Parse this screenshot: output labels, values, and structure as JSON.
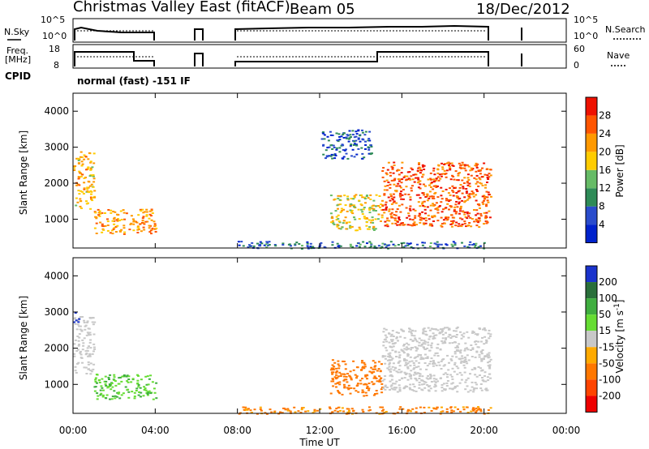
{
  "header": {
    "station": "Christmas Valley East (fitACF)",
    "beam": "Beam 05",
    "date": "18/Dec/2012"
  },
  "time_axis": {
    "label": "Time UT",
    "ticks": [
      "00:00",
      "04:00",
      "08:00",
      "12:00",
      "16:00",
      "20:00",
      "00:00"
    ]
  },
  "strip_panels": {
    "nsky": {
      "left_label": "N.Sky",
      "right_label": "N.Search",
      "ticks": [
        "10^5",
        "10^0"
      ]
    },
    "freq": {
      "left_label_1": "Freq.",
      "left_label_2": "[MHz]",
      "left_ticks": [
        "18",
        "8"
      ],
      "right_label": "Nave",
      "right_ticks": [
        "60",
        "0"
      ]
    },
    "cpid": {
      "label": "CPID",
      "mode": "normal (fast) -151 IF"
    }
  },
  "colors": {
    "power": [
      "#0022cc",
      "#2a4ccc",
      "#2e8b57",
      "#66bb66",
      "#ffcc00",
      "#ff9900",
      "#ff5500",
      "#ee1100"
    ],
    "velocity": [
      "#1a33cc",
      "#2a6f3a",
      "#3fae3f",
      "#66dd33",
      "#c8c8c8",
      "#ffaa00",
      "#ff7700",
      "#ff4400",
      "#ee0000"
    ]
  },
  "chart_data": [
    {
      "type": "heatmap",
      "quantity": "power",
      "ylabel": "Slant Range [km]",
      "xlabel": "Time UT",
      "x_range_hours": [
        0,
        24
      ],
      "ylim": [
        200,
        4500
      ],
      "yticks": [
        1000,
        2000,
        3000,
        4000
      ],
      "colorbar": {
        "label": "Power [dB]",
        "ticks": [
          4,
          8,
          12,
          16,
          20,
          24,
          28
        ],
        "range": [
          0,
          32
        ]
      },
      "gaps_hours": [
        [
          4.0,
          6.0
        ],
        [
          6.4,
          8.0
        ],
        [
          20.3,
          24.0
        ]
      ],
      "regions": [
        {
          "t": [
            0.0,
            1.0
          ],
          "r": [
            1300,
            2900
          ],
          "dB": 20
        },
        {
          "t": [
            1.0,
            4.0
          ],
          "r": [
            600,
            1300
          ],
          "dB": 22
        },
        {
          "t": [
            8.0,
            20.3
          ],
          "r": [
            200,
            400
          ],
          "dB": 8
        },
        {
          "t": [
            12.5,
            15.0
          ],
          "r": [
            700,
            1700
          ],
          "dB": 18
        },
        {
          "t": [
            15.0,
            20.3
          ],
          "r": [
            800,
            2600
          ],
          "dB": 26
        },
        {
          "t": [
            12.0,
            14.5
          ],
          "r": [
            2700,
            3500
          ],
          "dB": 6
        }
      ]
    },
    {
      "type": "heatmap",
      "quantity": "velocity",
      "ylabel": "Slant Range [km]",
      "xlabel": "Time UT",
      "x_range_hours": [
        0,
        24
      ],
      "ylim": [
        200,
        4500
      ],
      "yticks": [
        1000,
        2000,
        3000,
        4000
      ],
      "colorbar": {
        "label": "Velocity [m s^-1]",
        "ticks": [
          200,
          100,
          50,
          15,
          -15,
          -50,
          -100,
          -200
        ]
      },
      "gaps_hours": [
        [
          4.0,
          6.0
        ],
        [
          6.4,
          8.0
        ],
        [
          20.3,
          24.0
        ]
      ],
      "regions": [
        {
          "t": [
            0.0,
            1.0
          ],
          "r": [
            1300,
            2900
          ],
          "v": 0
        },
        {
          "t": [
            1.0,
            4.0
          ],
          "r": [
            600,
            1300
          ],
          "v": 30
        },
        {
          "t": [
            8.0,
            20.3
          ],
          "r": [
            200,
            400
          ],
          "v": -40
        },
        {
          "t": [
            12.5,
            15.0
          ],
          "r": [
            700,
            1700
          ],
          "v": -60
        },
        {
          "t": [
            15.0,
            20.3
          ],
          "r": [
            800,
            2600
          ],
          "v": 0
        },
        {
          "t": [
            0.0,
            0.3
          ],
          "r": [
            2700,
            3000
          ],
          "v": 200
        }
      ]
    }
  ]
}
